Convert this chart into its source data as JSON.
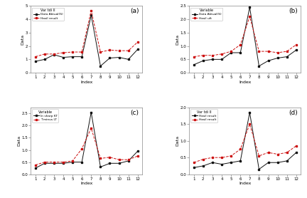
{
  "index": [
    1,
    2,
    3,
    4,
    5,
    6,
    7,
    8,
    9,
    10,
    11,
    12
  ],
  "a_actual": [
    0.85,
    1.0,
    1.35,
    1.15,
    1.2,
    1.2,
    4.3,
    0.5,
    1.1,
    1.15,
    1.0,
    1.75
  ],
  "a_forecast": [
    1.2,
    1.4,
    1.4,
    1.5,
    1.55,
    1.55,
    4.65,
    1.55,
    1.7,
    1.65,
    1.65,
    2.3
  ],
  "a_ylim": [
    0,
    5
  ],
  "a_yticks": [
    0,
    1,
    2,
    3,
    4,
    5
  ],
  "a_label": "(a)",
  "a_legend_title": "Var tdi II",
  "a_legend_actual": "Data Aktual(S)",
  "a_legend_forecast": "Hasil result",
  "b_actual": [
    0.3,
    0.45,
    0.5,
    0.5,
    0.75,
    0.75,
    2.45,
    0.25,
    0.45,
    0.55,
    0.6,
    0.85
  ],
  "b_forecast": [
    0.6,
    0.65,
    0.65,
    0.7,
    0.8,
    1.05,
    2.1,
    0.8,
    0.8,
    0.75,
    0.8,
    1.05
  ],
  "b_ylim": [
    0.0,
    2.5
  ],
  "b_yticks": [
    0.0,
    0.5,
    1.0,
    1.5,
    2.0,
    2.5
  ],
  "b_label": "(b)",
  "b_legend_title": "Variable",
  "b_legend_actual": "Data Aktual(S)",
  "b_legend_forecast": "Hasil uft",
  "c_actual": [
    0.25,
    0.45,
    0.45,
    0.45,
    0.5,
    0.5,
    2.55,
    0.3,
    0.45,
    0.45,
    0.55,
    0.95
  ],
  "c_forecast": [
    0.38,
    0.5,
    0.5,
    0.5,
    0.55,
    1.05,
    1.9,
    0.65,
    0.7,
    0.6,
    0.6,
    0.75
  ],
  "c_ylim": [
    0.0,
    2.75
  ],
  "c_yticks": [
    0.0,
    0.5,
    1.0,
    1.5,
    2.0,
    2.5
  ],
  "c_label": "(c)",
  "c_legend_title": "Variable",
  "c_legend_actual": "In sharp KT",
  "c_legend_forecast": "T minus LT",
  "d_actual": [
    0.2,
    0.25,
    0.35,
    0.3,
    0.35,
    0.4,
    1.85,
    0.15,
    0.35,
    0.35,
    0.4,
    0.65
  ],
  "d_forecast": [
    0.35,
    0.45,
    0.5,
    0.5,
    0.55,
    0.75,
    1.5,
    0.55,
    0.65,
    0.6,
    0.65,
    0.85
  ],
  "d_ylim": [
    0.0,
    2.0
  ],
  "d_yticks": [
    0.0,
    0.5,
    1.0,
    1.5,
    2.0
  ],
  "d_label": "(d)",
  "d_legend_title": "Var tdi II",
  "d_legend_actual": "Hasil result",
  "d_legend_forecast": "Hasil result",
  "actual_color": "#111111",
  "forecast_color": "#cc1111",
  "actual_marker": "s",
  "forecast_marker": "s",
  "xlabel": "Index",
  "ylabel": "Data",
  "bg_color": "#ffffff"
}
